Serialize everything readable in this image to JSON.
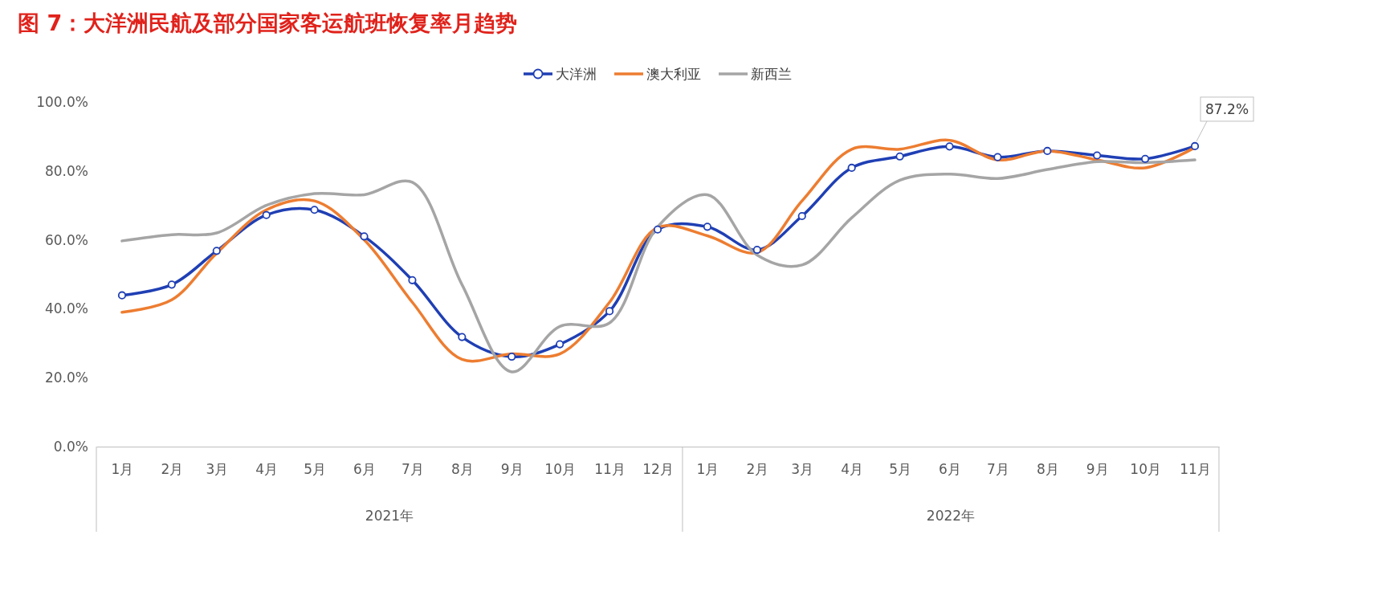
{
  "chart_data": {
    "type": "line",
    "title": "图 7：大洋洲民航及部分国家客运航班恢复率月趋势",
    "x": [
      "2021-01",
      "2021-02",
      "2021-03",
      "2021-04",
      "2021-05",
      "2021-06",
      "2021-07",
      "2021-08",
      "2021-09",
      "2021-10",
      "2021-11",
      "2021-12",
      "2022-01",
      "2022-02",
      "2022-03",
      "2022-04",
      "2022-05",
      "2022-06",
      "2022-07",
      "2022-08",
      "2022-09",
      "2022-10",
      "2022-11"
    ],
    "xlim": [
      "2020-12-16",
      "2022-11-16"
    ],
    "xticks": [
      {
        "value": "2021-01",
        "label": "1月"
      },
      {
        "value": "2021-02",
        "label": "2月"
      },
      {
        "value": "2021-03",
        "label": "3月"
      },
      {
        "value": "2021-04",
        "label": "4月"
      },
      {
        "value": "2021-05",
        "label": "5月"
      },
      {
        "value": "2021-06",
        "label": "6月"
      },
      {
        "value": "2021-07",
        "label": "7月"
      },
      {
        "value": "2021-08",
        "label": "8月"
      },
      {
        "value": "2021-09",
        "label": "9月"
      },
      {
        "value": "2021-10",
        "label": "10月"
      },
      {
        "value": "2021-11",
        "label": "11月"
      },
      {
        "value": "2021-12",
        "label": "12月"
      },
      {
        "value": "2022-01",
        "label": "1月"
      },
      {
        "value": "2022-02",
        "label": "2月"
      },
      {
        "value": "2022-03",
        "label": "3月"
      },
      {
        "value": "2022-04",
        "label": "4月"
      },
      {
        "value": "2022-05",
        "label": "5月"
      },
      {
        "value": "2022-06",
        "label": "6月"
      },
      {
        "value": "2022-07",
        "label": "7月"
      },
      {
        "value": "2022-08",
        "label": "8月"
      },
      {
        "value": "2022-09",
        "label": "9月"
      },
      {
        "value": "2022-10",
        "label": "10月"
      },
      {
        "value": "2022-11",
        "label": "11月"
      }
    ],
    "ylim": [
      0,
      100
    ],
    "yticks": [
      {
        "value": 0,
        "label": "0.0%"
      },
      {
        "value": 20,
        "label": "20.0%"
      },
      {
        "value": 40,
        "label": "40.0%"
      },
      {
        "value": 60,
        "label": "60.0%"
      },
      {
        "value": 80,
        "label": "80.0%"
      },
      {
        "value": 100,
        "label": "100.0%"
      }
    ],
    "annotations": [
      "2021年",
      "2022年"
    ],
    "grid": false,
    "legend": "top",
    "series": [
      {
        "name": "大洋洲",
        "color": "#1f3fb4",
        "marker": "circle",
        "values": [
          43.9,
          47.0,
          56.8,
          67.2,
          68.7,
          61.0,
          48.3,
          31.8,
          26.1,
          29.7,
          39.3,
          63.0,
          63.8,
          57.1,
          66.9,
          80.9,
          84.2,
          87.1,
          84.0,
          85.8,
          84.5,
          83.5,
          87.2
        ],
        "value_labels": [
          null,
          null,
          null,
          null,
          null,
          null,
          null,
          null,
          null,
          null,
          null,
          null,
          null,
          null,
          null,
          null,
          null,
          null,
          null,
          null,
          null,
          null,
          "87.2%"
        ]
      },
      {
        "name": "澳大利亚",
        "color": "#ed7d31",
        "marker": "none",
        "values": [
          39.0,
          42.6,
          56.1,
          68.7,
          71.3,
          60.0,
          41.9,
          25.3,
          26.9,
          26.9,
          41.9,
          63.6,
          61.2,
          56.3,
          71.3,
          86.3,
          86.3,
          88.9,
          83.2,
          85.8,
          83.2,
          80.9,
          86.8
        ]
      },
      {
        "name": "新西兰",
        "color": "#a5a5a5",
        "marker": "none",
        "values": [
          59.7,
          61.5,
          62.0,
          70.0,
          73.4,
          73.1,
          76.7,
          47.0,
          21.7,
          34.9,
          35.9,
          63.8,
          73.1,
          55.6,
          52.7,
          66.4,
          77.3,
          79.1,
          77.8,
          80.4,
          82.7,
          82.4,
          83.2
        ]
      }
    ]
  }
}
